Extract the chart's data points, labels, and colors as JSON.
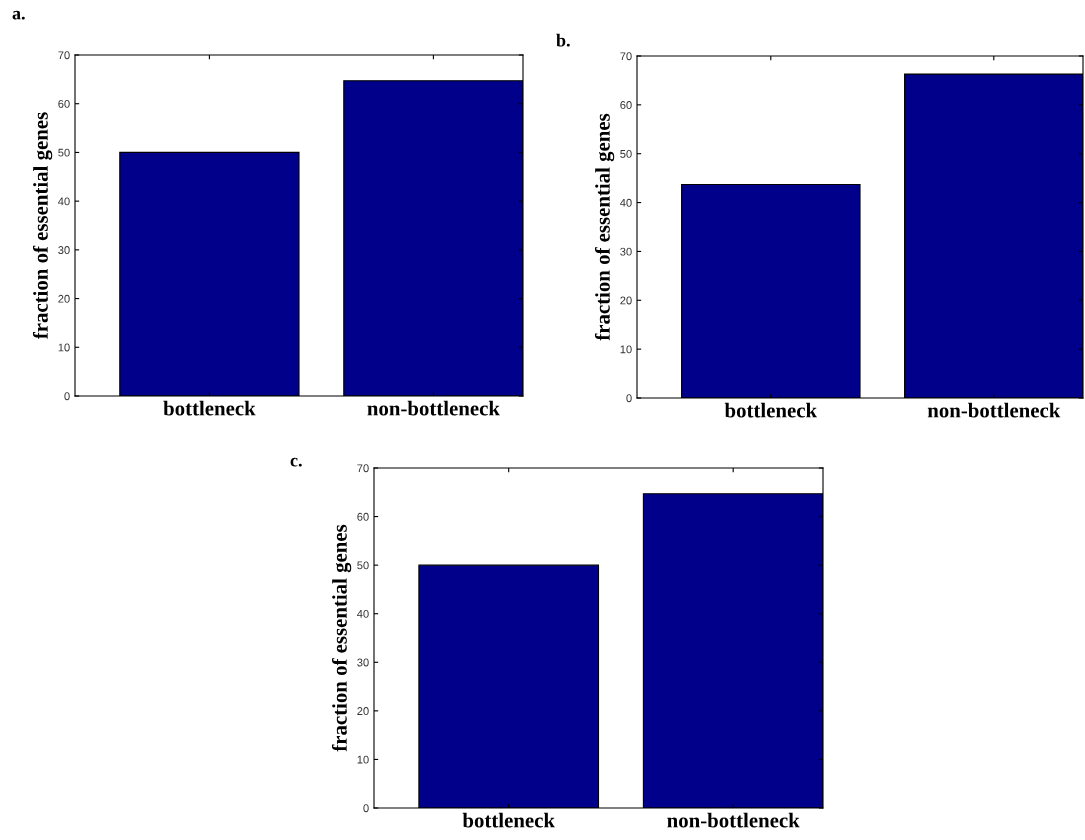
{
  "chart_data": [
    {
      "type": "bar",
      "title": "a.",
      "ylabel": "fraction of essential genes",
      "categories": [
        "bottleneck",
        "non-bottleneck"
      ],
      "values": [
        50,
        64.7
      ],
      "color": "#00008b",
      "ylim": [
        0,
        70
      ],
      "yticks": [
        0,
        10,
        20,
        30,
        40,
        50,
        60,
        70
      ],
      "grid": false
    },
    {
      "type": "bar",
      "title": "b.",
      "ylabel": "fraction of essential genes",
      "categories": [
        "bottleneck",
        "non-bottleneck"
      ],
      "values": [
        43.7,
        66.3
      ],
      "color": "#00008b",
      "ylim": [
        0,
        70
      ],
      "yticks": [
        0,
        10,
        20,
        30,
        40,
        50,
        60,
        70
      ],
      "grid": false
    },
    {
      "type": "bar",
      "title": "c.",
      "ylabel": "fraction of essential genes",
      "categories": [
        "bottleneck",
        "non-bottleneck"
      ],
      "values": [
        50,
        64.7
      ],
      "color": "#00008b",
      "ylim": [
        0,
        70
      ],
      "yticks": [
        0,
        10,
        20,
        30,
        40,
        50,
        60,
        70
      ],
      "grid": false
    }
  ]
}
